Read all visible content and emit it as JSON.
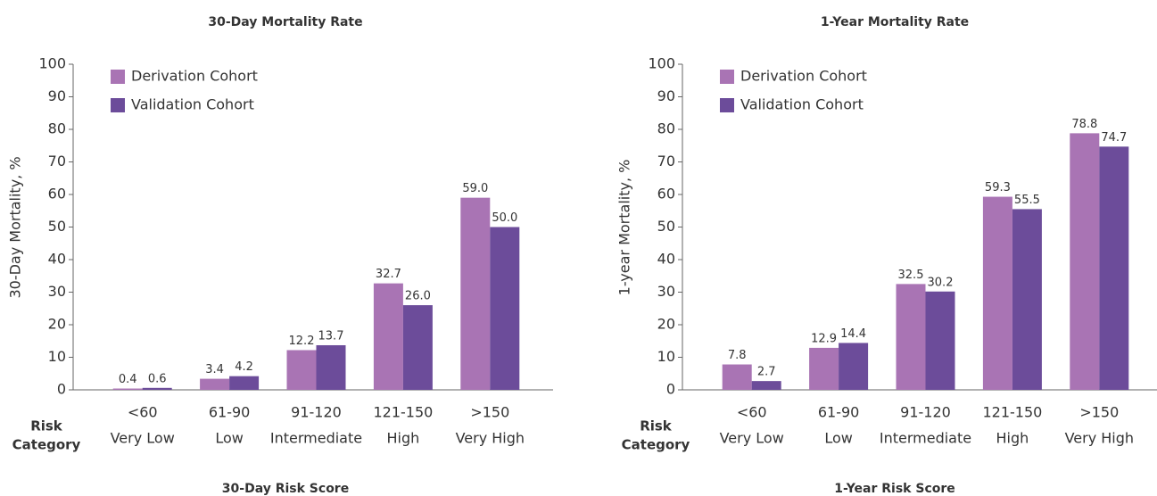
{
  "chart_data": [
    {
      "type": "bar",
      "title": "30-Day Mortality Rate",
      "y_label": "30-Day Mortality, %",
      "x_label": "30-Day Risk Score",
      "category_axis_label": [
        "Risk",
        "Category"
      ],
      "categories": [
        "<60",
        "61-90",
        "91-120",
        "121-150",
        ">150"
      ],
      "category_groups": [
        "Very Low",
        "Low",
        "Intermediate",
        "High",
        "Very High"
      ],
      "series": [
        {
          "name": "Derivation Cohort",
          "color": "#a974b4",
          "values": [
            0.4,
            3.4,
            12.2,
            32.7,
            59.0
          ],
          "value_labels": [
            "0.4",
            "3.4",
            "12.2",
            "32.7",
            "59.0"
          ]
        },
        {
          "name": "Validation Cohort",
          "color": "#6c4c9a",
          "values": [
            0.6,
            4.2,
            13.7,
            26.0,
            50.0
          ],
          "value_labels": [
            "0.6",
            "4.2",
            "13.7",
            "26.0",
            "50.0"
          ]
        }
      ],
      "ylim": [
        0,
        100
      ],
      "yticks": [
        0,
        10,
        20,
        30,
        40,
        50,
        60,
        70,
        80,
        90,
        100
      ],
      "legend": "upper left",
      "grid": false
    },
    {
      "type": "bar",
      "title": "1-Year Mortality Rate",
      "y_label": "1-year Mortality, %",
      "x_label": "1-Year Risk Score",
      "category_axis_label": [
        "Risk",
        "Category"
      ],
      "categories": [
        "<60",
        "61-90",
        "91-120",
        "121-150",
        ">150"
      ],
      "category_groups": [
        "Very Low",
        "Low",
        "Intermediate",
        "High",
        "Very High"
      ],
      "series": [
        {
          "name": "Derivation Cohort",
          "color": "#a974b4",
          "values": [
            7.8,
            12.9,
            32.5,
            59.3,
            78.8
          ],
          "value_labels": [
            "7.8",
            "12.9",
            "32.5",
            "59.3",
            "78.8"
          ]
        },
        {
          "name": "Validation Cohort",
          "color": "#6c4c9a",
          "values": [
            2.7,
            14.4,
            30.2,
            55.5,
            74.7
          ],
          "value_labels": [
            "2.7",
            "14.4",
            "30.2",
            "55.5",
            "74.7"
          ]
        }
      ],
      "ylim": [
        0,
        100
      ],
      "yticks": [
        0,
        10,
        20,
        30,
        40,
        50,
        60,
        70,
        80,
        90,
        100
      ],
      "legend": "upper left",
      "grid": false
    }
  ]
}
